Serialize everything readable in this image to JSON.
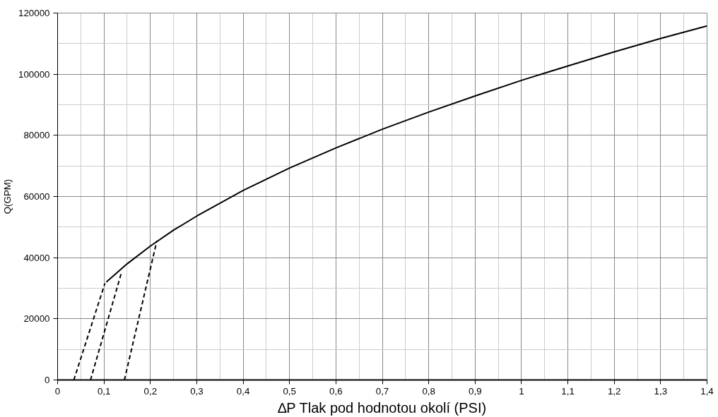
{
  "chart_data": {
    "type": "line",
    "xlabel": "∆P Tlak pod hodnotou okolí (PSI)",
    "ylabel": "Q(GPM)",
    "xlim": [
      0,
      1.4
    ],
    "ylim": [
      0,
      120000
    ],
    "xticks": [
      0,
      {
        "value": 0.1,
        "label": "0,1"
      },
      {
        "value": 0.2,
        "label": "0,2"
      },
      {
        "value": 0.3,
        "label": "0,3"
      },
      {
        "value": 0.4,
        "label": "0,4"
      },
      {
        "value": 0.5,
        "label": "0,5"
      },
      {
        "value": 0.6,
        "label": "0,6"
      },
      {
        "value": 0.7,
        "label": "0,7"
      },
      {
        "value": 0.8,
        "label": "0,8"
      },
      {
        "value": 0.9,
        "label": "0,9"
      },
      1,
      {
        "value": 1.1,
        "label": "1,1"
      },
      {
        "value": 1.2,
        "label": "1,2"
      },
      {
        "value": 1.3,
        "label": "1,3"
      },
      {
        "value": 1.4,
        "label": "1,4"
      }
    ],
    "yticks": [
      0,
      20000,
      40000,
      60000,
      80000,
      100000,
      120000
    ],
    "grid": true,
    "marker": "none",
    "series": [
      {
        "color": "#000000",
        "line_style": "solid",
        "x": [
          0.105,
          0.15,
          0.2,
          0.25,
          0.3,
          0.4,
          0.5,
          0.6,
          0.7,
          0.8,
          0.9,
          1.0,
          1.1,
          1.2,
          1.3,
          1.4
        ],
        "values": [
          32000,
          38000,
          43800,
          49000,
          53600,
          62000,
          69300,
          75900,
          82000,
          87600,
          92900,
          98000,
          102700,
          107300,
          111700,
          115800
        ]
      },
      {
        "color": "#000000",
        "line_style": "dashed",
        "x": [
          0.035,
          0.102
        ],
        "values": [
          0,
          31600
        ]
      },
      {
        "color": "#000000",
        "line_style": "dashed",
        "x": [
          0.071,
          0.138
        ],
        "values": [
          0,
          35300
        ]
      },
      {
        "color": "#000000",
        "line_style": "dashed",
        "x": [
          0.144,
          0.214
        ],
        "values": [
          0,
          45500
        ]
      }
    ]
  }
}
